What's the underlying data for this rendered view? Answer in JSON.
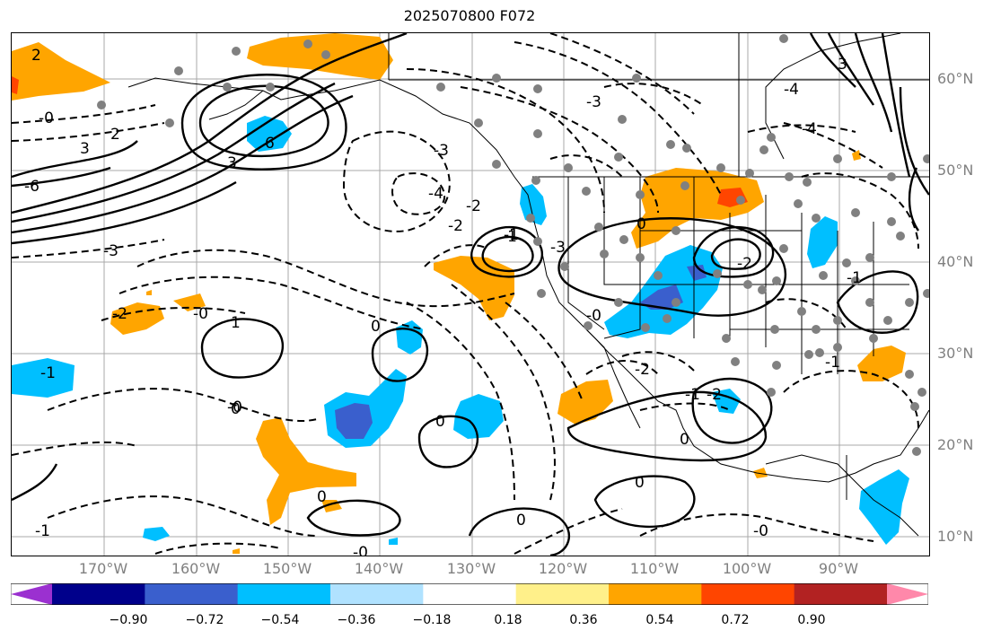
{
  "title": "2025070800 F072",
  "lat_labels": [
    "60°N",
    "50°N",
    "40°N",
    "30°N",
    "20°N",
    "10°N"
  ],
  "lon_labels": [
    "170°W",
    "160°W",
    "150°W",
    "140°W",
    "130°W",
    "120°W",
    "110°W",
    "100°W",
    "90°W"
  ],
  "colorbar": {
    "ticks": [
      "−0.90",
      "−0.72",
      "−0.54",
      "−0.36",
      "−0.18",
      "0.18",
      "0.36",
      "0.54",
      "0.72",
      "0.90"
    ],
    "colors": [
      "#9b30d0",
      "#00008b",
      "#3a5fcd",
      "#00bfff",
      "#b0e2ff",
      "#ffffff",
      "#fff08a",
      "#ffa500",
      "#ff4500",
      "#b22222",
      "#ff88aa"
    ]
  },
  "contour_labels": [
    "2",
    "-0",
    "3",
    "6",
    "2",
    "3",
    "-3",
    "3",
    "-6",
    "-1",
    "0",
    "-3",
    "-2",
    "-3",
    "-4",
    "-2",
    "-2",
    "-1",
    "0",
    "-2",
    "-1",
    "-0",
    "1",
    "0",
    "-1",
    "0",
    "0",
    "-0",
    "-0",
    "0",
    "0",
    "-1",
    "-2",
    "0",
    "-2",
    "-0",
    "-4",
    "-3",
    "-0",
    "-4",
    "-1",
    "-1"
  ],
  "field_colors": {
    "blue": "#00bfff",
    "darkblue": "#3a5fcd",
    "orange": "#ffa500",
    "red": "#ff4500",
    "dots": "#808080"
  }
}
